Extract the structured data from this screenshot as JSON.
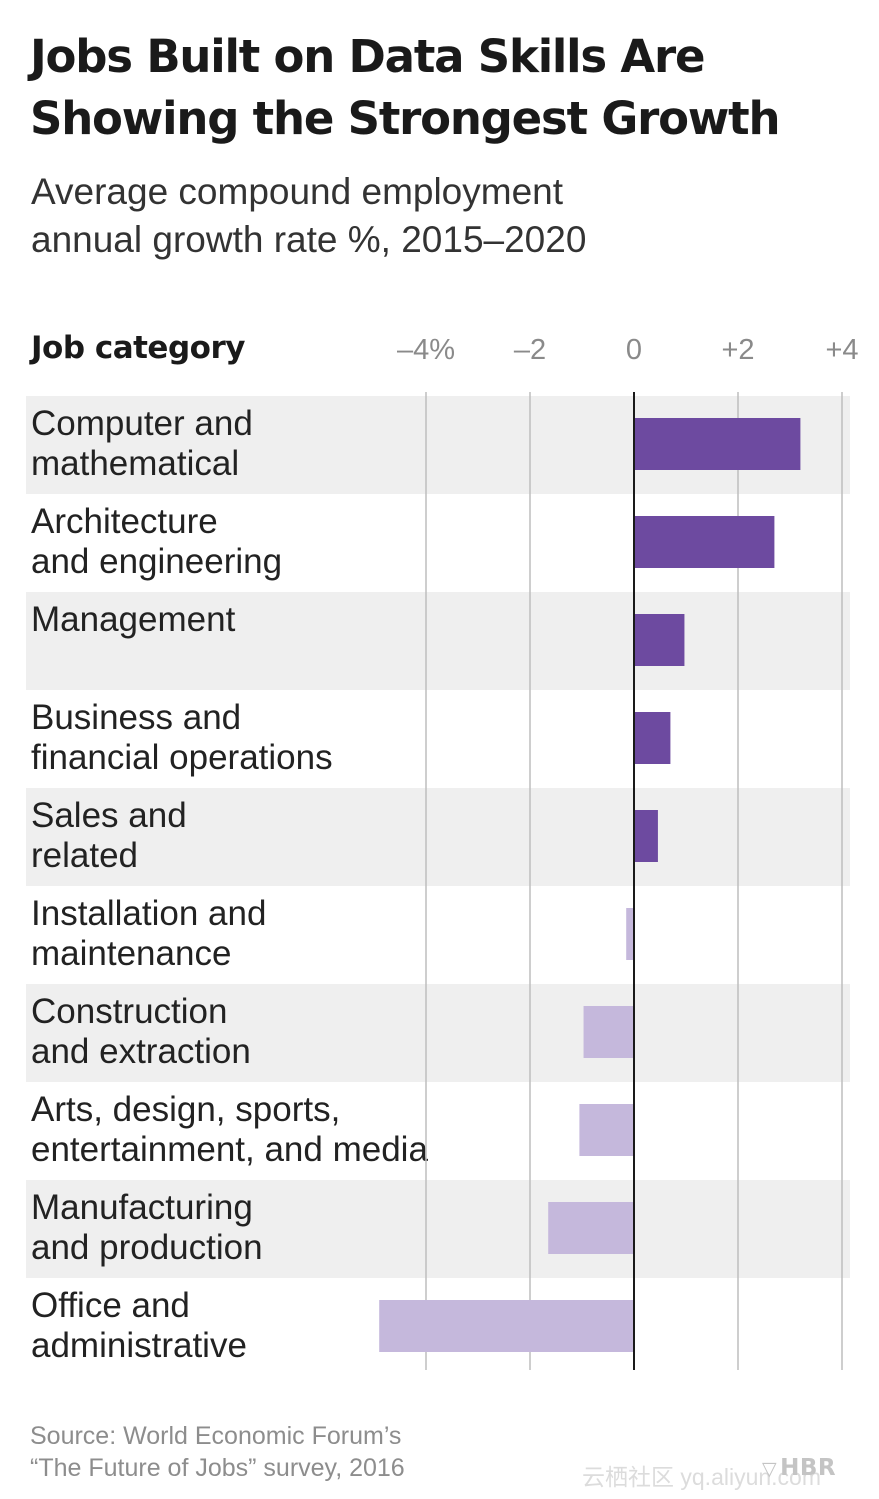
{
  "title_lines": [
    "Jobs Built on Data Skills Are",
    "Showing the Strongest Growth"
  ],
  "subtitle_lines": [
    "Average compound employment",
    "annual growth rate %, 2015–2020"
  ],
  "column_header": "Job category",
  "source_lines": [
    "Source: World Economic Forum’s",
    "“The Future of Jobs” survey, 2016"
  ],
  "brand": {
    "icon": "hbr-shield-icon",
    "label": "HBR"
  },
  "watermark": "云栖社区 yq.aliyun.com",
  "colors": {
    "positive": "#6d4aa0",
    "negative": "#c5b8dc",
    "grid": "#bdbdbd",
    "zero_line": "#1a1a1a",
    "row_shade": "#efefef"
  },
  "chart_data": {
    "type": "bar",
    "orientation": "horizontal",
    "title": "Jobs Built on Data Skills Are Showing the Strongest Growth",
    "subtitle": "Average compound employment annual growth rate %, 2015–2020",
    "ylabel": "Job category",
    "xlim": [
      -5,
      4.2
    ],
    "ticks": [
      {
        "value": -4,
        "label": "–4%"
      },
      {
        "value": -2,
        "label": "–2"
      },
      {
        "value": 0,
        "label": "0"
      },
      {
        "value": 2,
        "label": "+2"
      },
      {
        "value": 4,
        "label": "+4"
      }
    ],
    "grid": true,
    "categories": [
      [
        "Computer and",
        "mathematical"
      ],
      [
        "Architecture",
        "and engineering"
      ],
      [
        "Management"
      ],
      [
        "Business and",
        "financial operations"
      ],
      [
        "Sales and",
        "related"
      ],
      [
        "Installation and",
        "maintenance"
      ],
      [
        "Construction",
        "and extraction"
      ],
      [
        "Arts, design, sports,",
        "entertainment, and media"
      ],
      [
        "Manufacturing",
        "and production"
      ],
      [
        "Office and",
        "administrative"
      ]
    ],
    "values": [
      3.2,
      2.7,
      0.97,
      0.7,
      0.46,
      -0.15,
      -0.97,
      -1.05,
      -1.65,
      -4.9
    ]
  }
}
